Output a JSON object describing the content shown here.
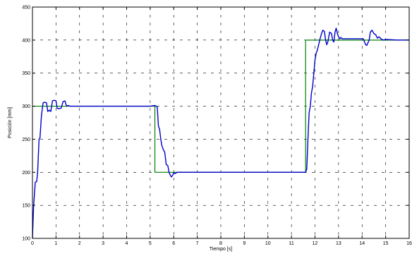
{
  "chart_data": {
    "type": "line",
    "title": "",
    "xlabel": "Tiempo [s]",
    "ylabel": "Posición [mm]",
    "xlim": [
      0,
      16
    ],
    "ylim": [
      100,
      450
    ],
    "x_ticks": [
      0,
      1,
      2,
      3,
      4,
      5,
      6,
      7,
      8,
      9,
      10,
      11,
      12,
      13,
      14,
      15,
      16
    ],
    "y_ticks": [
      100,
      150,
      200,
      250,
      300,
      350,
      400,
      450
    ],
    "grid": true,
    "grid_style": "dashed",
    "legend": "none",
    "series": [
      {
        "color": "#008000",
        "x": [
          0,
          5.2,
          5.2,
          11.6,
          11.6,
          16
        ],
        "y": [
          300,
          300,
          200,
          200,
          400,
          400
        ]
      },
      {
        "color": "#0000cc",
        "x": [
          0,
          0.05,
          0.12,
          0.18,
          0.22,
          0.28,
          0.32,
          0.38,
          0.45,
          0.52,
          0.6,
          0.65,
          0.72,
          0.78,
          0.85,
          0.92,
          1.0,
          1.05,
          1.12,
          1.22,
          1.3,
          1.38,
          1.45,
          1.52,
          1.6,
          1.7,
          1.9,
          2.5,
          3.0,
          3.5,
          4.0,
          4.5,
          5.0,
          5.2,
          5.3,
          5.35,
          5.4,
          5.45,
          5.5,
          5.55,
          5.62,
          5.68,
          5.75,
          5.8,
          5.85,
          5.9,
          5.95,
          6.0,
          6.05,
          6.15,
          6.4,
          7.0,
          8.0,
          9.0,
          10.0,
          11.0,
          11.6,
          11.65,
          11.7,
          11.75,
          11.8,
          11.85,
          11.9,
          11.95,
          12.0,
          12.05,
          12.1,
          12.15,
          12.2,
          12.28,
          12.33,
          12.4,
          12.45,
          12.5,
          12.55,
          12.62,
          12.7,
          12.75,
          12.8,
          12.85,
          12.9,
          12.95,
          13.0,
          13.05,
          13.1,
          13.15,
          13.25,
          13.3,
          13.4,
          13.5,
          13.7,
          13.9,
          14.05,
          14.15,
          14.2,
          14.25,
          14.3,
          14.35,
          14.42,
          14.5,
          14.58,
          14.65,
          14.72,
          14.8,
          14.9,
          15.0,
          15.5,
          16.0
        ],
        "y": [
          100,
          150,
          185,
          186,
          200,
          250,
          252,
          285,
          305,
          306,
          305,
          292,
          294,
          292,
          308,
          309,
          308,
          297,
          296,
          297,
          307,
          308,
          300,
          301,
          300,
          300,
          300,
          300,
          300,
          300,
          300,
          300,
          300,
          301,
          299,
          270,
          265,
          250,
          240,
          235,
          230,
          212,
          210,
          200,
          196,
          193,
          195,
          199,
          198,
          200,
          200,
          200,
          200,
          200,
          200,
          200,
          200,
          205,
          250,
          290,
          300,
          320,
          330,
          350,
          370,
          380,
          385,
          392,
          400,
          410,
          415,
          413,
          400,
          393,
          398,
          412,
          410,
          400,
          397,
          412,
          418,
          410,
          405,
          402,
          404,
          402,
          402,
          402,
          402,
          402,
          402,
          402,
          402,
          393,
          392,
          396,
          400,
          412,
          415,
          410,
          408,
          403,
          405,
          402,
          400,
          401,
          400,
          400
        ]
      }
    ]
  }
}
